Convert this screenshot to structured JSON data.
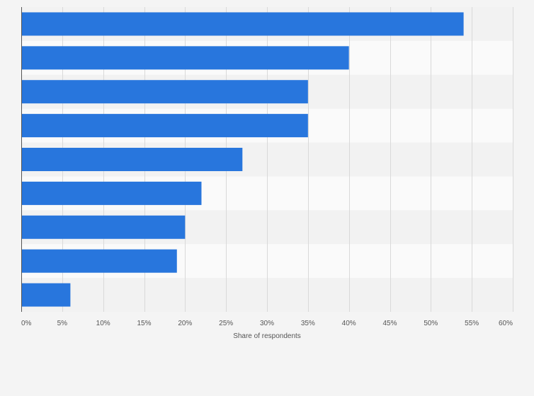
{
  "chart_data": {
    "type": "bar",
    "orientation": "horizontal",
    "categories": [
      "",
      "",
      "",
      "",
      "",
      "",
      "",
      "",
      ""
    ],
    "values": [
      54,
      40,
      35,
      35,
      27,
      22,
      20,
      19,
      6
    ],
    "xlabel": "Share of respondents",
    "ylabel": "",
    "xlim": [
      0,
      60
    ],
    "ticks": [
      0,
      5,
      10,
      15,
      20,
      25,
      30,
      35,
      40,
      45,
      50,
      55,
      60
    ],
    "tick_labels": [
      "0%",
      "5%",
      "10%",
      "15%",
      "20%",
      "25%",
      "30%",
      "35%",
      "40%",
      "45%",
      "50%",
      "55%",
      "60%"
    ],
    "grid": true,
    "legend": "none",
    "colors": {
      "bar": "#2876dd",
      "background": "#f4f4f4",
      "band_light": "#fafafa",
      "band_dark": "#f2f2f2",
      "grid": "#d9d9d9",
      "axis": "#555555",
      "text": "#555555"
    }
  }
}
